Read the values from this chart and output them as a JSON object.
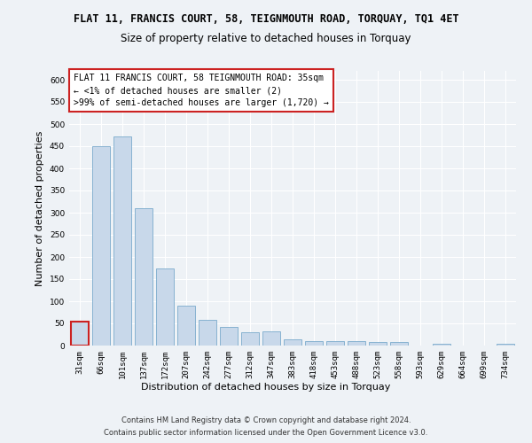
{
  "title_line1": "FLAT 11, FRANCIS COURT, 58, TEIGNMOUTH ROAD, TORQUAY, TQ1 4ET",
  "title_line2": "Size of property relative to detached houses in Torquay",
  "xlabel": "Distribution of detached houses by size in Torquay",
  "ylabel": "Number of detached properties",
  "categories": [
    "31sqm",
    "66sqm",
    "101sqm",
    "137sqm",
    "172sqm",
    "207sqm",
    "242sqm",
    "277sqm",
    "312sqm",
    "347sqm",
    "383sqm",
    "418sqm",
    "453sqm",
    "488sqm",
    "523sqm",
    "558sqm",
    "593sqm",
    "629sqm",
    "664sqm",
    "699sqm",
    "734sqm"
  ],
  "values": [
    55,
    450,
    472,
    311,
    175,
    90,
    58,
    42,
    30,
    32,
    15,
    11,
    10,
    10,
    8,
    8,
    1,
    5,
    1,
    1,
    5
  ],
  "bar_color": "#c8d8ea",
  "bar_edge_color": "#7aaacc",
  "highlight_bar_index": 0,
  "highlight_edge_color": "#cc2222",
  "annotation_title": "FLAT 11 FRANCIS COURT, 58 TEIGNMOUTH ROAD: 35sqm",
  "annotation_line1": "← <1% of detached houses are smaller (2)",
  "annotation_line2": ">99% of semi-detached houses are larger (1,720) →",
  "annotation_box_color": "#ffffff",
  "annotation_box_edge_color": "#cc2222",
  "ylim": [
    0,
    620
  ],
  "yticks": [
    0,
    50,
    100,
    150,
    200,
    250,
    300,
    350,
    400,
    450,
    500,
    550,
    600
  ],
  "footer_line1": "Contains HM Land Registry data © Crown copyright and database right 2024.",
  "footer_line2": "Contains public sector information licensed under the Open Government Licence v3.0.",
  "bg_color": "#eef2f6",
  "plot_bg_color": "#eef2f6",
  "grid_color": "#ffffff",
  "title_fontsize": 8.5,
  "subtitle_fontsize": 8.5,
  "axis_label_fontsize": 8,
  "tick_fontsize": 6.5,
  "annotation_fontsize": 7,
  "footer_fontsize": 6
}
